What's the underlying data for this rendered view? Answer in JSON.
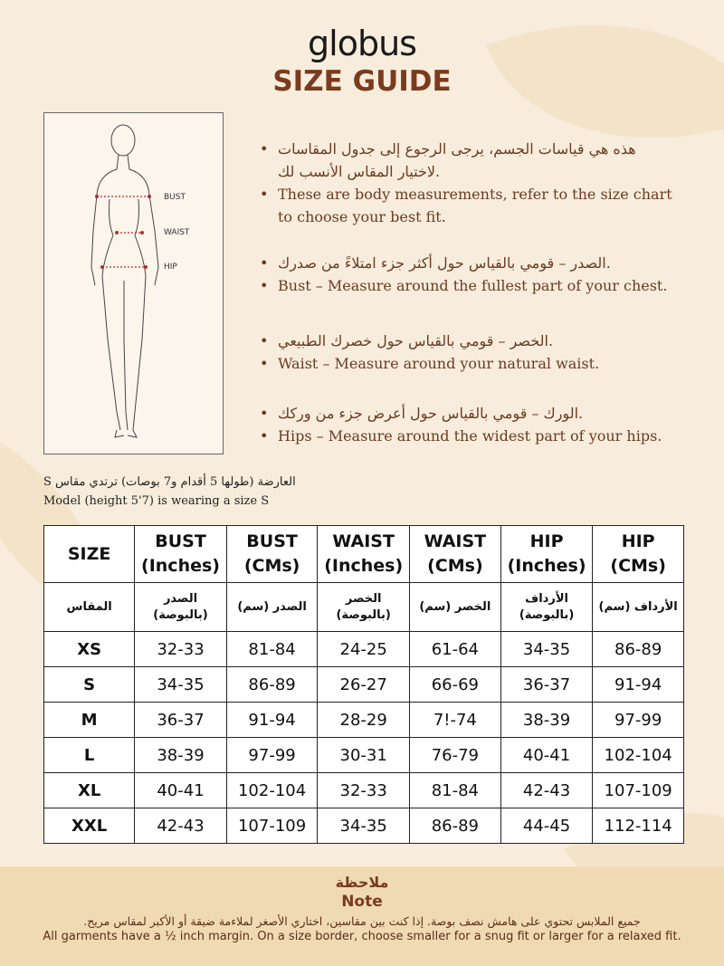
{
  "brand": "globus",
  "title": "SIZE GUIDE",
  "figure": {
    "labels": [
      "BUST",
      "WAIST",
      "HIP"
    ]
  },
  "bullets": [
    {
      "ar": "هذه هي قياسات الجسم، يرجى الرجوع إلى جدول المقاسات لاختيار المقاس الأنسب لك.",
      "en": "These are body measurements, refer to the size chart to choose your best fit."
    },
    {
      "ar": "الصدر – قومي بالقياس حول أكثر جزء امتلاءً من صدرك.",
      "en": "Bust – Measure around the fullest part of your chest."
    },
    {
      "ar": "الخصر – قومي بالقياس حول خصرك الطبيعي.",
      "en": "Waist – Measure around your natural waist."
    },
    {
      "ar": "الورك – قومي بالقياس حول أعرض جزء من وركك.",
      "en": "Hips – Measure around the widest part of your hips."
    }
  ],
  "model": {
    "ar": "العارضة (طولها 5 أقدام و7 بوصات) ترتدي مقاس S",
    "en": "Model (height 5'7) is wearing a size S"
  },
  "table": {
    "headers": [
      "SIZE",
      "BUST (Inches)",
      "BUST (CMs)",
      "WAIST (Inches)",
      "WAIST (CMs)",
      "HIP (Inches)",
      "HIP (CMs)"
    ],
    "headers_ar": [
      "المقاس",
      "الصدر (بالبوصة)",
      "الصدر (سم)",
      "الخصر (بالبوصة)",
      "الخصر (سم)",
      "الأرداف (بالبوصة)",
      "الأرداف (سم)"
    ],
    "rows": [
      [
        "XS",
        "32-33",
        "81-84",
        "24-25",
        "61-64",
        "34-35",
        "86-89"
      ],
      [
        "S",
        "34-35",
        "86-89",
        "26-27",
        "66-69",
        "36-37",
        "91-94"
      ],
      [
        "M",
        "36-37",
        "91-94",
        "28-29",
        "7!-74",
        "38-39",
        "97-99"
      ],
      [
        "L",
        "38-39",
        "97-99",
        "30-31",
        "76-79",
        "40-41",
        "102-104"
      ],
      [
        "XL",
        "40-41",
        "102-104",
        "32-33",
        "81-84",
        "42-43",
        "107-109"
      ],
      [
        "XXL",
        "42-43",
        "107-109",
        "34-35",
        "86-89",
        "44-45",
        "112-114"
      ]
    ]
  },
  "note": {
    "title_ar": "ملاحظة",
    "title_en": "Note",
    "text_ar": "جميع الملابس تحتوي على هامش نصف بوصة. إذا كنت بين مقاسين، اختاري الأصغر لملاءمة ضيقة أو الأكبر لمقاس مريح.",
    "text_en": "All garments have a ½ inch margin. On a size border, choose smaller for a snug fit or larger for a relaxed fit."
  },
  "colors": {
    "accent": "#7a3b1e",
    "background": "#f8eddc",
    "footer": "#f0dab4"
  }
}
